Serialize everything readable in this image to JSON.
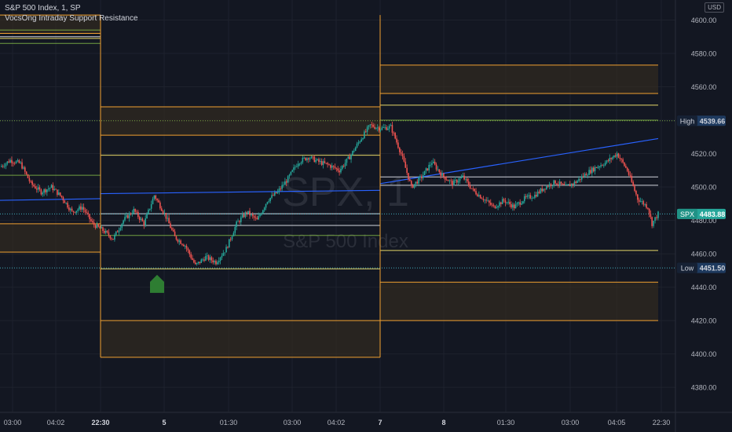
{
  "header": {
    "symbol_line": "S&P 500 Index, 1, SP",
    "indicator_line": "VocsOng Intraday Support Resistance"
  },
  "currency": {
    "line1": "USD"
  },
  "watermark": {
    "symbol": "SPX, 1",
    "name": "S&P 500 Index"
  },
  "colors": {
    "bg": "#131722",
    "grid": "#1e222d",
    "up": "#26a69a",
    "down": "#ef5350",
    "orange": "#f0a030",
    "yellow": "#e6d86a",
    "green": "#8bc34a",
    "white": "#d1d4dc",
    "blue": "#2962ff",
    "cyan": "#4dd0e1"
  },
  "chart_data": {
    "type": "candlestick",
    "ylim": [
      4365,
      4612
    ],
    "y_ticks": [
      4380,
      4400,
      4420,
      4440,
      4460,
      4480,
      4500,
      4520,
      4540,
      4560,
      4580,
      4600
    ],
    "x_ticks": [
      "03:00",
      "04:02",
      "22:30",
      "5",
      "01:30",
      "03:00",
      "04:02",
      "7",
      "8",
      "01:30",
      "03:00",
      "04:05",
      "22:30"
    ],
    "price_labels": [
      {
        "tag": "High",
        "value": "4539.66"
      },
      {
        "tag": "SPX",
        "value": "4483.88"
      },
      {
        "tag": "Low",
        "value": "4451.50"
      }
    ],
    "sessions": [
      {
        "name": "session-1",
        "orange_zones": [
          [
            4592,
            4603
          ],
          [
            4461,
            4478
          ]
        ],
        "yellow": [
          4589
        ],
        "green": [
          4594,
          4586,
          4507
        ],
        "white": [
          4590
        ],
        "blue_avg": [
          4492,
          4493
        ]
      },
      {
        "name": "session-2",
        "orange_zones": [
          [
            4531,
            4548
          ],
          [
            4398,
            4420
          ]
        ],
        "yellow": [
          4519,
          4451
        ],
        "green": [
          4471
        ],
        "white": [
          4484,
          4477
        ],
        "blue_avg": [
          4496,
          4498
        ]
      },
      {
        "name": "session-3",
        "orange_zones": [
          [
            4556,
            4573
          ],
          [
            4420,
            4443
          ]
        ],
        "yellow": [
          4549,
          4462
        ],
        "green": [
          4540
        ],
        "white": [
          4506,
          4501
        ],
        "blue_avg": [
          4502,
          4529
        ]
      }
    ],
    "path": [
      [
        0,
        4512
      ],
      [
        5,
        4516
      ],
      [
        10,
        4514
      ],
      [
        15,
        4502
      ],
      [
        20,
        4497
      ],
      [
        25,
        4500
      ],
      [
        30,
        4494
      ],
      [
        35,
        4485
      ],
      [
        40,
        4488
      ],
      [
        45,
        4478
      ],
      [
        50,
        4474
      ],
      [
        55,
        4469
      ],
      [
        60,
        4480
      ],
      [
        65,
        4486
      ],
      [
        70,
        4478
      ],
      [
        75,
        4495
      ],
      [
        80,
        4484
      ],
      [
        85,
        4470
      ],
      [
        90,
        4465
      ],
      [
        95,
        4453
      ],
      [
        100,
        4458
      ],
      [
        105,
        4455
      ],
      [
        110,
        4463
      ],
      [
        115,
        4478
      ],
      [
        120,
        4485
      ],
      [
        125,
        4480
      ],
      [
        130,
        4492
      ],
      [
        135,
        4497
      ],
      [
        140,
        4505
      ],
      [
        145,
        4515
      ],
      [
        150,
        4518
      ],
      [
        155,
        4515
      ],
      [
        160,
        4513
      ],
      [
        165,
        4510
      ],
      [
        170,
        4518
      ],
      [
        175,
        4528
      ],
      [
        180,
        4537
      ],
      [
        185,
        4535
      ],
      [
        190,
        4536
      ],
      [
        195,
        4520
      ],
      [
        200,
        4500
      ],
      [
        205,
        4506
      ],
      [
        210,
        4515
      ],
      [
        215,
        4507
      ],
      [
        220,
        4502
      ],
      [
        225,
        4506
      ],
      [
        230,
        4498
      ],
      [
        235,
        4493
      ],
      [
        240,
        4488
      ],
      [
        245,
        4492
      ],
      [
        250,
        4488
      ],
      [
        255,
        4493
      ],
      [
        260,
        4495
      ],
      [
        265,
        4500
      ],
      [
        270,
        4503
      ],
      [
        275,
        4500
      ],
      [
        280,
        4503
      ],
      [
        285,
        4508
      ],
      [
        290,
        4512
      ],
      [
        295,
        4515
      ],
      [
        300,
        4520
      ],
      [
        305,
        4510
      ],
      [
        310,
        4493
      ],
      [
        315,
        4488
      ],
      [
        317,
        4478
      ],
      [
        320,
        4484
      ]
    ]
  }
}
